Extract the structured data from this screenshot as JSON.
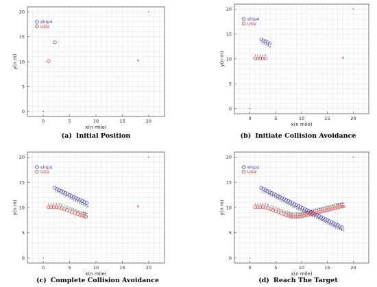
{
  "colors": {
    "ship": "#3a3ad6",
    "usv": "#e63232",
    "grid": "#e2e2e2",
    "target": "#e63232",
    "corner": "#1aa37a"
  },
  "chart_data": [
    {
      "type": "scatter",
      "caption_letter": "(a)",
      "caption_text": "Initial Position",
      "xlabel": "x(n mile)",
      "ylabel": "y(n m)",
      "xlim": [
        -3,
        23
      ],
      "ylim": [
        -1,
        21
      ],
      "xticks": [
        0,
        5,
        10,
        15,
        20
      ],
      "yticks": [
        0,
        5,
        10,
        15,
        20
      ],
      "grid": true,
      "legend": [
        "ship4",
        "USV"
      ],
      "legend_position": "top-left",
      "target": [
        18,
        10
      ],
      "corners": [
        [
          0,
          0
        ],
        [
          20,
          20
        ]
      ],
      "ship4": {
        "x": [
          2.2
        ],
        "y": [
          13.9
        ]
      },
      "usv": {
        "x": [
          1.0
        ],
        "y": [
          10.1
        ]
      },
      "point_labels": [],
      "ship4_labels": []
    },
    {
      "type": "scatter",
      "caption_letter": "(b)",
      "caption_text": "Initiate Collision Avoidance",
      "xlabel": "x(n mile)",
      "ylabel": "y(n m)",
      "xlim": [
        -3,
        23
      ],
      "ylim": [
        -1,
        21
      ],
      "xticks": [
        0,
        5,
        10,
        15,
        20
      ],
      "yticks": [
        0,
        5,
        10,
        15,
        20
      ],
      "grid": true,
      "legend": [
        "ship4",
        "USV"
      ],
      "legend_position": "top-left",
      "target": [
        18,
        10
      ],
      "corners": [
        [
          0,
          0
        ],
        [
          20,
          20
        ]
      ],
      "ship4": {
        "x": [
          2.2,
          2.6,
          3.0,
          3.4,
          3.8
        ],
        "y": [
          13.9,
          13.7,
          13.5,
          13.3,
          13.1
        ]
      },
      "usv": {
        "x": [
          1.0,
          1.5,
          2.0,
          2.5,
          3.0
        ],
        "y": [
          10.1,
          10.1,
          10.1,
          10.1,
          10.1
        ]
      },
      "point_labels": [
        "1",
        "2",
        "3",
        "4",
        "5"
      ],
      "ship4_labels": [
        "1",
        "2",
        "3",
        "4",
        "5"
      ]
    },
    {
      "type": "scatter",
      "caption_letter": "(c)",
      "caption_text": "Complete Collision Avoidance",
      "xlabel": "x(n mile)",
      "ylabel": "y(n m)",
      "xlim": [
        -3,
        23
      ],
      "ylim": [
        -1,
        21
      ],
      "xticks": [
        0,
        5,
        10,
        15,
        20
      ],
      "yticks": [
        0,
        5,
        10,
        15,
        20
      ],
      "grid": true,
      "legend": [
        "ship4",
        "USV"
      ],
      "legend_position": "top-left",
      "target": [
        18,
        10
      ],
      "corners": [
        [
          0,
          0
        ],
        [
          20,
          20
        ]
      ],
      "ship4": {
        "x": [
          2.2,
          2.6,
          3.0,
          3.4,
          3.8,
          4.2,
          4.6,
          5.0,
          5.4,
          5.8,
          6.2,
          6.6,
          7.0,
          7.4,
          7.8,
          8.2
        ],
        "y": [
          13.9,
          13.7,
          13.5,
          13.3,
          13.1,
          12.9,
          12.7,
          12.5,
          12.3,
          12.1,
          11.9,
          11.7,
          11.5,
          11.3,
          11.1,
          10.9
        ]
      },
      "usv": {
        "x": [
          1.0,
          1.5,
          2.0,
          2.5,
          3.0,
          3.5,
          4.0,
          4.5,
          5.0,
          5.5,
          6.0,
          6.5,
          7.0,
          7.4,
          7.8,
          8.1
        ],
        "y": [
          10.1,
          10.1,
          10.1,
          10.1,
          10.0,
          9.9,
          9.7,
          9.5,
          9.3,
          9.1,
          8.9,
          8.7,
          8.5,
          8.4,
          8.3,
          8.2
        ]
      },
      "point_labels": [
        "1",
        "2",
        "3",
        "4",
        "5",
        "6",
        "7",
        "8",
        "9",
        "10",
        "11",
        "12",
        "13",
        "14",
        "15",
        "16"
      ],
      "ship4_labels": [
        "1",
        "2",
        "3",
        "4",
        "5",
        "6",
        "7",
        "8",
        "9",
        "10",
        "11",
        "12",
        "13",
        "14",
        "15",
        "16"
      ]
    },
    {
      "type": "scatter",
      "caption_letter": "(d)",
      "caption_text": "Reach The Target",
      "xlabel": "x(n mile)",
      "ylabel": "y(n m)",
      "xlim": [
        -3,
        23
      ],
      "ylim": [
        -1,
        21
      ],
      "xticks": [
        0,
        5,
        10,
        15,
        20
      ],
      "yticks": [
        0,
        5,
        10,
        15,
        20
      ],
      "grid": true,
      "legend": [
        "ship4",
        "USV"
      ],
      "legend_position": "top-left",
      "target": [
        18,
        10
      ],
      "corners": [
        [
          0,
          0
        ],
        [
          20,
          20
        ]
      ],
      "ship4": {
        "x": [
          2.2,
          2.6,
          3.0,
          3.4,
          3.8,
          4.2,
          4.6,
          5.0,
          5.4,
          5.8,
          6.2,
          6.6,
          7.0,
          7.4,
          7.8,
          8.2,
          8.6,
          9.0,
          9.4,
          9.8,
          10.2,
          10.6,
          11.0,
          11.4,
          11.8,
          12.2,
          12.6,
          13.0,
          13.4,
          13.8,
          14.2,
          14.6,
          15.0,
          15.4,
          15.8,
          16.2,
          16.6,
          17.0,
          17.4,
          17.8
        ],
        "y": [
          13.9,
          13.7,
          13.5,
          13.3,
          13.1,
          12.9,
          12.7,
          12.5,
          12.3,
          12.1,
          11.9,
          11.7,
          11.5,
          11.3,
          11.1,
          10.9,
          10.7,
          10.5,
          10.3,
          10.1,
          9.9,
          9.7,
          9.5,
          9.3,
          9.1,
          8.9,
          8.7,
          8.5,
          8.3,
          8.1,
          7.9,
          7.7,
          7.5,
          7.3,
          7.1,
          6.9,
          6.7,
          6.5,
          6.3,
          6.1
        ]
      },
      "usv": {
        "x": [
          1.0,
          1.5,
          2.0,
          2.5,
          3.0,
          3.5,
          4.0,
          4.5,
          5.0,
          5.5,
          6.0,
          6.5,
          7.0,
          7.4,
          7.8,
          8.1,
          8.5,
          8.9,
          9.3,
          9.7,
          10.1,
          10.5,
          10.9,
          11.3,
          11.7,
          12.1,
          12.5,
          12.9,
          13.3,
          13.7,
          14.1,
          14.5,
          14.9,
          15.3,
          15.7,
          16.1,
          16.5,
          16.9,
          17.3,
          17.7,
          18.0
        ],
        "y": [
          10.1,
          10.1,
          10.1,
          10.1,
          10.0,
          9.9,
          9.7,
          9.5,
          9.3,
          9.1,
          8.9,
          8.7,
          8.5,
          8.4,
          8.3,
          8.2,
          8.2,
          8.2,
          8.2,
          8.2,
          8.3,
          8.4,
          8.5,
          8.6,
          8.7,
          8.8,
          8.9,
          9.0,
          9.1,
          9.2,
          9.3,
          9.4,
          9.5,
          9.6,
          9.7,
          9.8,
          9.9,
          10.0,
          10.1,
          10.2,
          10.2
        ]
      },
      "point_labels": [
        "1",
        "2",
        "3",
        "4",
        "5",
        "6",
        "7",
        "8",
        "9",
        "10",
        "11",
        "12",
        "13",
        "14",
        "15",
        "16",
        "17",
        "18",
        "19",
        "20",
        "21",
        "22",
        "23",
        "24",
        "25",
        "26",
        "27",
        "28",
        "29",
        "30",
        "31",
        "32",
        "33",
        "34",
        "35",
        "36",
        "37",
        "38",
        "39",
        "40",
        "41"
      ],
      "ship4_labels": [
        "1",
        "2",
        "3",
        "4",
        "5",
        "6",
        "7",
        "8",
        "9",
        "10",
        "11",
        "12",
        "13",
        "14",
        "15",
        "16",
        "17",
        "18",
        "19",
        "20",
        "21",
        "22",
        "23",
        "24",
        "25",
        "26",
        "27",
        "28",
        "29",
        "30",
        "31",
        "32",
        "33",
        "34",
        "35",
        "36",
        "37",
        "38",
        "39",
        "40"
      ]
    }
  ]
}
